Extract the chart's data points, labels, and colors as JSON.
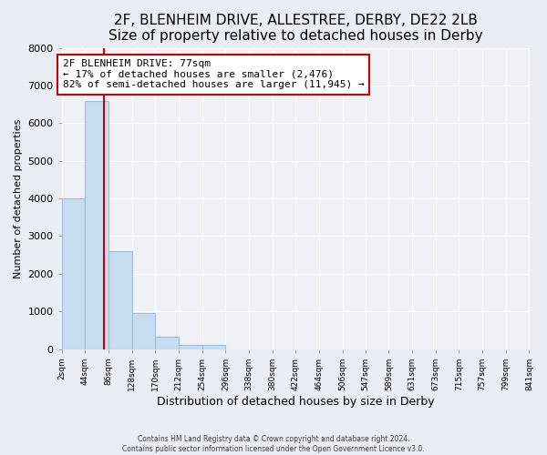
{
  "title": "2F, BLENHEIM DRIVE, ALLESTREE, DERBY, DE22 2LB",
  "subtitle": "Size of property relative to detached houses in Derby",
  "xlabel": "Distribution of detached houses by size in Derby",
  "ylabel": "Number of detached properties",
  "bin_edges": [
    2,
    44,
    86,
    128,
    170,
    212,
    254,
    296,
    338,
    380,
    422,
    464,
    506,
    547,
    589,
    631,
    673,
    715,
    757,
    799,
    841
  ],
  "bar_heights": [
    4000,
    6600,
    2600,
    950,
    320,
    120,
    100,
    0,
    0,
    0,
    0,
    0,
    0,
    0,
    0,
    0,
    0,
    0,
    0,
    0
  ],
  "bar_color": "#c8ddf0",
  "bar_edge_color": "#a0bcd8",
  "property_size": 77,
  "property_line_color": "#cc0000",
  "annotation_text_line1": "2F BLENHEIM DRIVE: 77sqm",
  "annotation_text_line2": "← 17% of detached houses are smaller (2,476)",
  "annotation_text_line3": "82% of semi-detached houses are larger (11,945) →",
  "annotation_box_color": "#ffffff",
  "annotation_box_edge": "#cc0000",
  "ylim": [
    0,
    8000
  ],
  "yticks": [
    0,
    1000,
    2000,
    3000,
    4000,
    5000,
    6000,
    7000,
    8000
  ],
  "tick_labels": [
    "2sqm",
    "44sqm",
    "86sqm",
    "128sqm",
    "170sqm",
    "212sqm",
    "254sqm",
    "296sqm",
    "338sqm",
    "380sqm",
    "422sqm",
    "464sqm",
    "506sqm",
    "547sqm",
    "589sqm",
    "631sqm",
    "673sqm",
    "715sqm",
    "757sqm",
    "799sqm",
    "841sqm"
  ],
  "footer_line1": "Contains HM Land Registry data © Crown copyright and database right 2024.",
  "footer_line2": "Contains public sector information licensed under the Open Government Licence v3.0.",
  "background_color": "#e8eef4",
  "plot_bg_color": "#eef2f7",
  "grid_color": "#ffffff",
  "title_fontsize": 11,
  "subtitle_fontsize": 9
}
